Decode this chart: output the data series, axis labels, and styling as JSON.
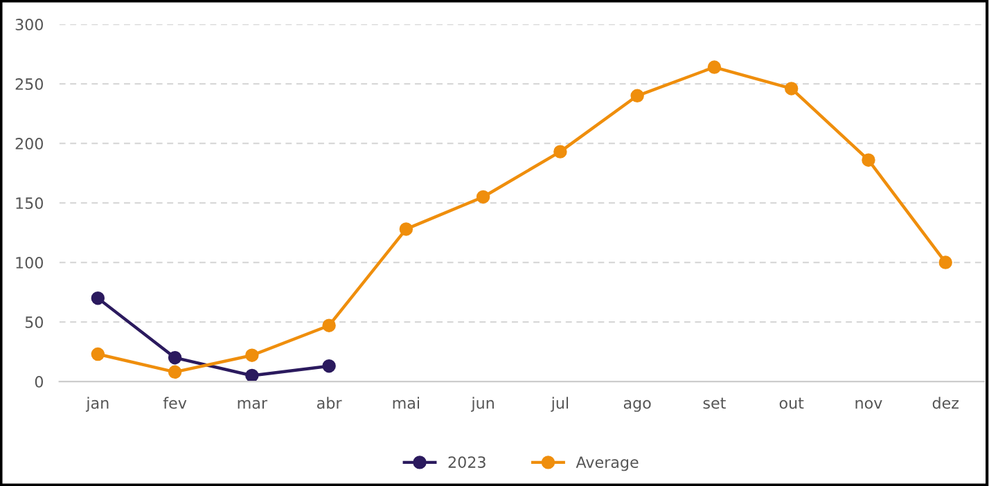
{
  "chart_data": {
    "type": "line",
    "categories": [
      "jan",
      "fev",
      "mar",
      "abr",
      "mai",
      "jun",
      "jul",
      "ago",
      "set",
      "out",
      "nov",
      "dez"
    ],
    "series": [
      {
        "name": "2023",
        "color": "#2b1a5e",
        "values": [
          70,
          20,
          5,
          13,
          null,
          null,
          null,
          null,
          null,
          null,
          null,
          null
        ]
      },
      {
        "name": "Average",
        "color": "#ef8e0c",
        "values": [
          23,
          8,
          22,
          47,
          128,
          155,
          193,
          240,
          264,
          246,
          186,
          100
        ]
      }
    ],
    "ylim": [
      0,
      300
    ],
    "yticks": [
      0,
      50,
      100,
      150,
      200,
      250,
      300
    ],
    "grid": "y",
    "legend": "bottom",
    "marker": "circle",
    "line_style": "solid"
  }
}
